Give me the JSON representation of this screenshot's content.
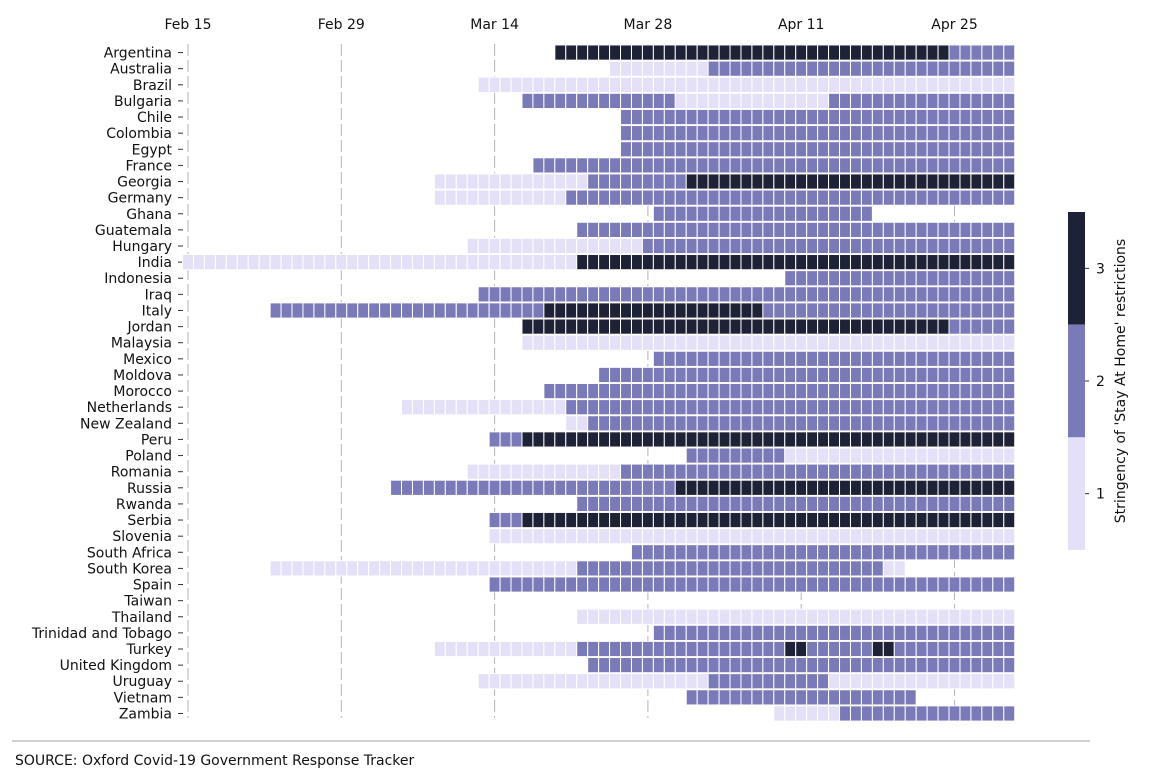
{
  "chart_data": {
    "type": "heatmap",
    "x_ticks": [
      "Feb 15",
      "Feb 29",
      "Mar 14",
      "Mar 28",
      "Apr 11",
      "Apr 25"
    ],
    "start_date": "Feb 15",
    "colorbar": {
      "label": "Stringency of 'Stay At Home' restrictions",
      "ticks": [
        "1",
        "2",
        "3"
      ],
      "colors": {
        "1": "#e4e0f7",
        "2": "#7a7ab8",
        "3": "#1e2236"
      }
    },
    "rows": [
      {
        "country": "Argentina",
        "spans": [
          {
            "from": "Mar 20",
            "to": "Apr 24",
            "level": 3
          },
          {
            "from": "Apr 25",
            "to": "Apr 30",
            "level": 2
          }
        ]
      },
      {
        "country": "Australia",
        "spans": [
          {
            "from": "Mar 25",
            "to": "Apr 2",
            "level": 1
          },
          {
            "from": "Apr 3",
            "to": "Apr 30",
            "level": 2
          }
        ]
      },
      {
        "country": "Brazil",
        "spans": [
          {
            "from": "Mar 13",
            "to": "Apr 30",
            "level": 1
          }
        ]
      },
      {
        "country": "Bulgaria",
        "spans": [
          {
            "from": "Mar 17",
            "to": "Mar 30",
            "level": 2
          },
          {
            "from": "Mar 31",
            "to": "Apr 13",
            "level": 1
          },
          {
            "from": "Apr 14",
            "to": "Apr 30",
            "level": 2
          }
        ]
      },
      {
        "country": "Chile",
        "spans": [
          {
            "from": "Mar 26",
            "to": "Apr 30",
            "level": 2
          }
        ]
      },
      {
        "country": "Colombia",
        "spans": [
          {
            "from": "Mar 26",
            "to": "Apr 30",
            "level": 2
          }
        ]
      },
      {
        "country": "Egypt",
        "spans": [
          {
            "from": "Mar 26",
            "to": "Apr 30",
            "level": 2
          }
        ]
      },
      {
        "country": "France",
        "spans": [
          {
            "from": "Mar 18",
            "to": "Apr 30",
            "level": 2
          }
        ]
      },
      {
        "country": "Georgia",
        "spans": [
          {
            "from": "Mar 9",
            "to": "Mar 22",
            "level": 1
          },
          {
            "from": "Mar 23",
            "to": "Mar 31",
            "level": 2
          },
          {
            "from": "Apr 1",
            "to": "Apr 30",
            "level": 3
          }
        ]
      },
      {
        "country": "Germany",
        "spans": [
          {
            "from": "Mar 9",
            "to": "Mar 20",
            "level": 1
          },
          {
            "from": "Mar 21",
            "to": "Apr 30",
            "level": 2
          }
        ]
      },
      {
        "country": "Ghana",
        "spans": [
          {
            "from": "Mar 29",
            "to": "Apr 17",
            "level": 2
          }
        ]
      },
      {
        "country": "Guatemala",
        "spans": [
          {
            "from": "Mar 22",
            "to": "Apr 30",
            "level": 2
          }
        ]
      },
      {
        "country": "Hungary",
        "spans": [
          {
            "from": "Mar 12",
            "to": "Mar 27",
            "level": 1
          },
          {
            "from": "Mar 28",
            "to": "Apr 30",
            "level": 2
          }
        ]
      },
      {
        "country": "India",
        "spans": [
          {
            "from": "Feb 15",
            "to": "Mar 21",
            "level": 1
          },
          {
            "from": "Mar 22",
            "to": "Apr 30",
            "level": 3
          }
        ]
      },
      {
        "country": "Indonesia",
        "spans": [
          {
            "from": "Apr 10",
            "to": "Apr 30",
            "level": 2
          }
        ]
      },
      {
        "country": "Iraq",
        "spans": [
          {
            "from": "Mar 13",
            "to": "Apr 9",
            "level": 2
          },
          {
            "from": "Apr 10",
            "to": "Apr 30",
            "level": 2
          }
        ]
      },
      {
        "country": "Italy",
        "spans": [
          {
            "from": "Feb 23",
            "to": "Mar 18",
            "level": 2
          },
          {
            "from": "Mar 19",
            "to": "Apr 7",
            "level": 3
          },
          {
            "from": "Apr 8",
            "to": "Apr 30",
            "level": 2
          }
        ]
      },
      {
        "country": "Jordan",
        "spans": [
          {
            "from": "Mar 17",
            "to": "Apr 24",
            "level": 3
          },
          {
            "from": "Apr 25",
            "to": "Apr 30",
            "level": 2
          }
        ]
      },
      {
        "country": "Malaysia",
        "spans": [
          {
            "from": "Mar 17",
            "to": "Apr 30",
            "level": 1
          }
        ]
      },
      {
        "country": "Mexico",
        "spans": [
          {
            "from": "Mar 29",
            "to": "Apr 30",
            "level": 2
          }
        ]
      },
      {
        "country": "Moldova",
        "spans": [
          {
            "from": "Mar 24",
            "to": "Apr 30",
            "level": 2
          }
        ]
      },
      {
        "country": "Morocco",
        "spans": [
          {
            "from": "Mar 19",
            "to": "Apr 30",
            "level": 2
          }
        ]
      },
      {
        "country": "Netherlands",
        "spans": [
          {
            "from": "Mar 6",
            "to": "Mar 20",
            "level": 1
          },
          {
            "from": "Mar 21",
            "to": "Apr 30",
            "level": 2
          }
        ]
      },
      {
        "country": "New Zealand",
        "spans": [
          {
            "from": "Mar 21",
            "to": "Mar 22",
            "level": 1
          },
          {
            "from": "Mar 23",
            "to": "Apr 30",
            "level": 2
          }
        ]
      },
      {
        "country": "Peru",
        "spans": [
          {
            "from": "Mar 14",
            "to": "Mar 16",
            "level": 2
          },
          {
            "from": "Mar 17",
            "to": "Apr 30",
            "level": 3
          }
        ]
      },
      {
        "country": "Poland",
        "spans": [
          {
            "from": "Apr 1",
            "to": "Apr 9",
            "level": 2
          },
          {
            "from": "Apr 10",
            "to": "Apr 30",
            "level": 1
          }
        ]
      },
      {
        "country": "Romania",
        "spans": [
          {
            "from": "Mar 12",
            "to": "Mar 25",
            "level": 1
          },
          {
            "from": "Mar 26",
            "to": "Apr 30",
            "level": 2
          }
        ]
      },
      {
        "country": "Russia",
        "spans": [
          {
            "from": "Mar 5",
            "to": "Mar 30",
            "level": 2
          },
          {
            "from": "Mar 31",
            "to": "Apr 30",
            "level": 3
          }
        ]
      },
      {
        "country": "Rwanda",
        "spans": [
          {
            "from": "Mar 22",
            "to": "Apr 30",
            "level": 2
          }
        ]
      },
      {
        "country": "Serbia",
        "spans": [
          {
            "from": "Mar 14",
            "to": "Mar 16",
            "level": 2
          },
          {
            "from": "Mar 17",
            "to": "Apr 30",
            "level": 3
          }
        ]
      },
      {
        "country": "Slovenia",
        "spans": [
          {
            "from": "Mar 14",
            "to": "Apr 30",
            "level": 1
          }
        ]
      },
      {
        "country": "South Africa",
        "spans": [
          {
            "from": "Mar 27",
            "to": "Apr 30",
            "level": 2
          }
        ]
      },
      {
        "country": "South Korea",
        "spans": [
          {
            "from": "Feb 23",
            "to": "Mar 21",
            "level": 1
          },
          {
            "from": "Mar 22",
            "to": "Apr 18",
            "level": 2
          },
          {
            "from": "Apr 19",
            "to": "Apr 20",
            "level": 1
          }
        ]
      },
      {
        "country": "Spain",
        "spans": [
          {
            "from": "Mar 14",
            "to": "Apr 30",
            "level": 2
          }
        ]
      },
      {
        "country": "Taiwan",
        "spans": []
      },
      {
        "country": "Thailand",
        "spans": [
          {
            "from": "Mar 22",
            "to": "Apr 30",
            "level": 1
          }
        ]
      },
      {
        "country": "Trinidad and Tobago",
        "spans": [
          {
            "from": "Mar 29",
            "to": "Apr 30",
            "level": 2
          }
        ]
      },
      {
        "country": "Turkey",
        "spans": [
          {
            "from": "Mar 9",
            "to": "Mar 21",
            "level": 1
          },
          {
            "from": "Mar 22",
            "to": "Apr 9",
            "level": 2
          },
          {
            "from": "Apr 10",
            "to": "Apr 11",
            "level": 3
          },
          {
            "from": "Apr 12",
            "to": "Apr 17",
            "level": 2
          },
          {
            "from": "Apr 18",
            "to": "Apr 19",
            "level": 3
          },
          {
            "from": "Apr 20",
            "to": "Apr 30",
            "level": 2
          }
        ]
      },
      {
        "country": "United Kingdom",
        "spans": [
          {
            "from": "Mar 23",
            "to": "Apr 30",
            "level": 2
          }
        ]
      },
      {
        "country": "Uruguay",
        "spans": [
          {
            "from": "Mar 13",
            "to": "Apr 2",
            "level": 1
          },
          {
            "from": "Apr 3",
            "to": "Apr 13",
            "level": 2
          },
          {
            "from": "Apr 14",
            "to": "Apr 30",
            "level": 1
          }
        ]
      },
      {
        "country": "Vietnam",
        "spans": [
          {
            "from": "Apr 1",
            "to": "Apr 21",
            "level": 2
          }
        ]
      },
      {
        "country": "Zambia",
        "spans": [
          {
            "from": "Apr 9",
            "to": "Apr 14",
            "level": 1
          },
          {
            "from": "Apr 15",
            "to": "Apr 30",
            "level": 2
          }
        ]
      }
    ]
  },
  "source_text": "SOURCE: Oxford Covid-19 Government Response Tracker"
}
